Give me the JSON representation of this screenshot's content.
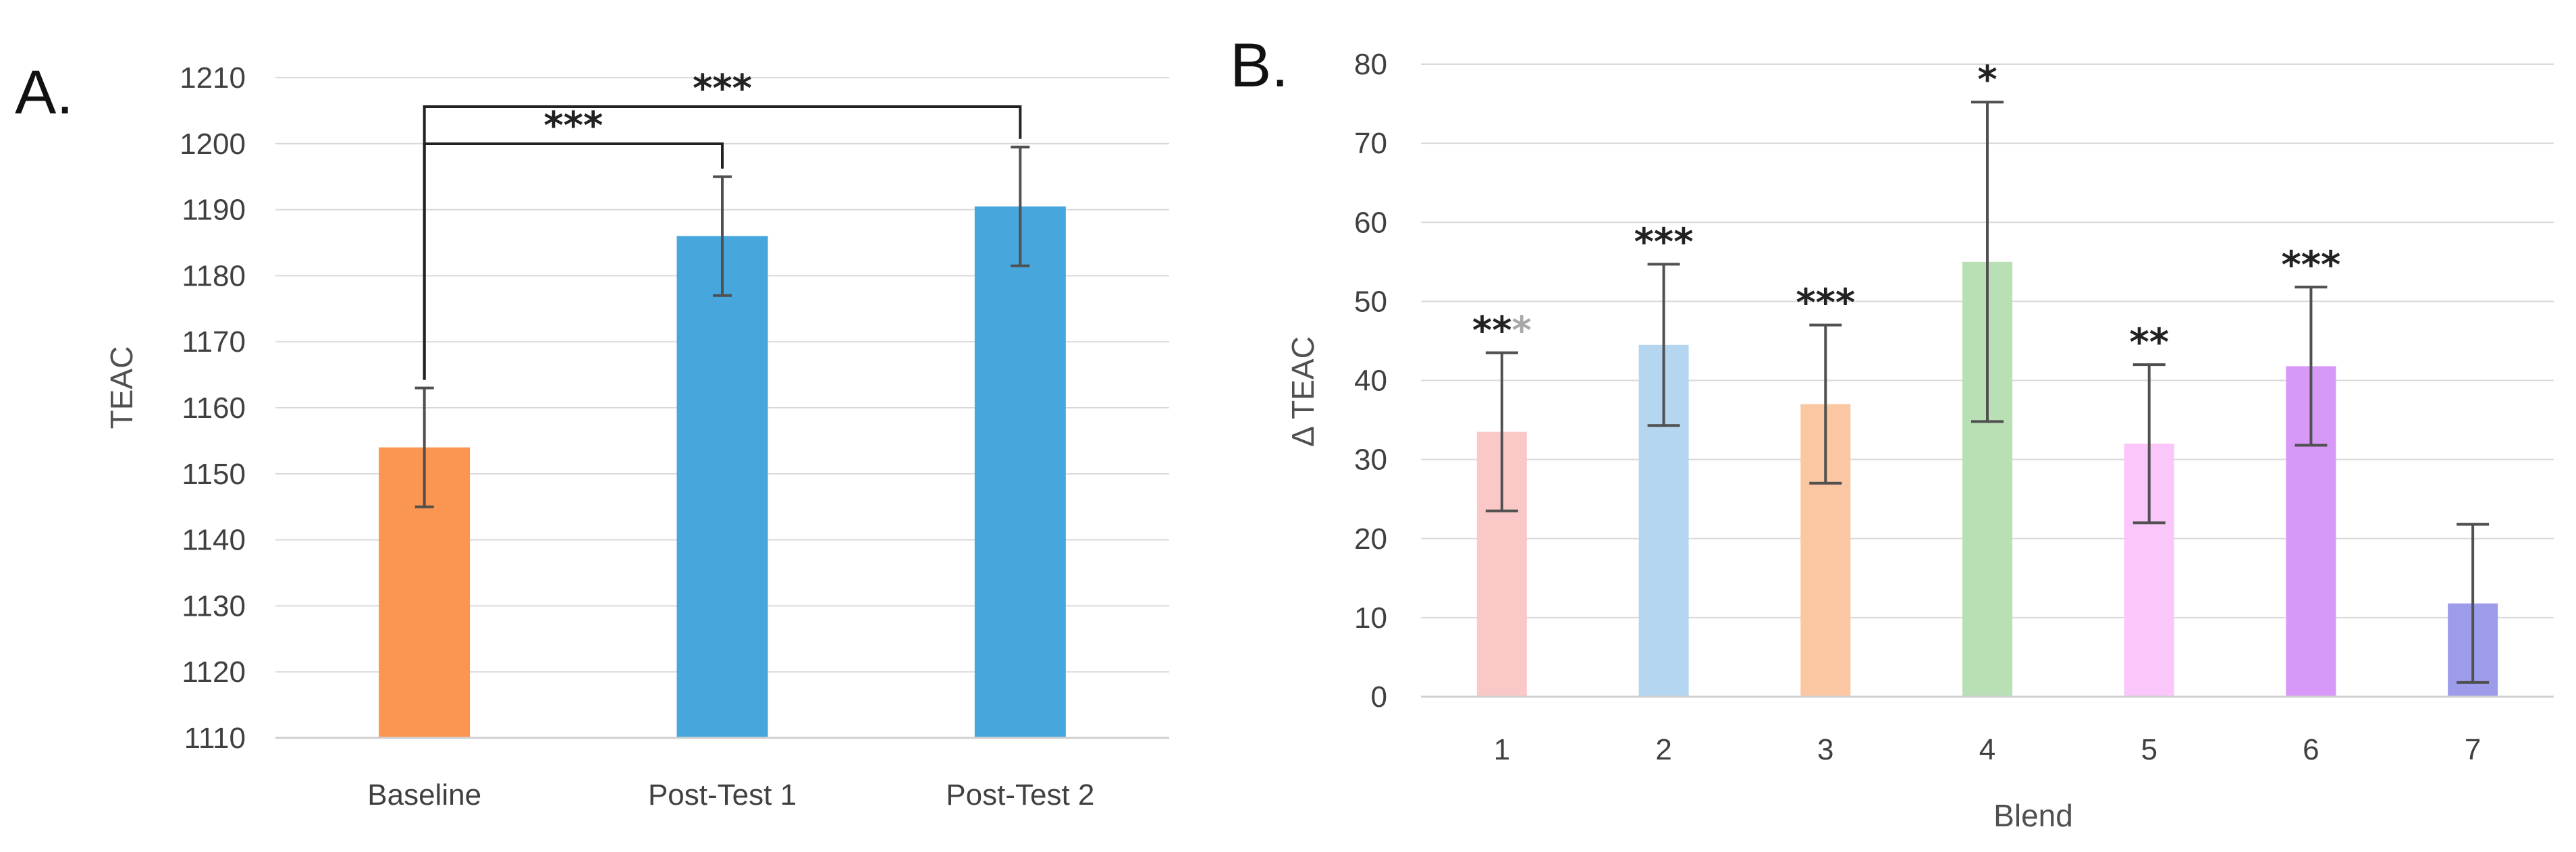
{
  "chart_data": [
    {
      "type": "bar",
      "panel_label": "A.",
      "categories": [
        "Baseline",
        "Post-Test 1",
        "Post-Test 2"
      ],
      "values": [
        1154,
        1186,
        1190.5
      ],
      "error": [
        9,
        9,
        9
      ],
      "colors": [
        "#fb9652",
        "#47a7dd",
        "#47a7dd"
      ],
      "title": "",
      "xlabel": "",
      "ylabel": "TEAC",
      "ylim": [
        1110,
        1210
      ],
      "yticks": [
        "1110",
        "1120",
        "1130",
        "1140",
        "1150",
        "1160",
        "1170",
        "1180",
        "1190",
        "1200",
        "1210"
      ],
      "grid": true,
      "brackets": [
        {
          "from": "Baseline",
          "to": "Post-Test 1",
          "label": "***"
        },
        {
          "from": "Baseline",
          "to": "Post-Test 2",
          "label": "***"
        }
      ]
    },
    {
      "type": "bar",
      "panel_label": "B.",
      "categories": [
        "1",
        "2",
        "3",
        "4",
        "5",
        "6",
        "7"
      ],
      "values": [
        33.5,
        44.5,
        37,
        55,
        32,
        41.8,
        11.8
      ],
      "error": [
        10,
        10.2,
        10,
        20.2,
        10,
        10,
        10
      ],
      "colors": [
        "#fbc8c8",
        "#b4d6f0",
        "#fbc7a3",
        "#b8e0b4",
        "#fbc6fa",
        "#d898f8",
        "#9c9ceb"
      ],
      "significance": [
        [
          {
            "text": "**",
            "color": "#222222"
          },
          {
            "text": "*",
            "color": "#a8a8a8"
          }
        ],
        [
          {
            "text": "***",
            "color": "#222222"
          }
        ],
        [
          {
            "text": "***",
            "color": "#222222"
          }
        ],
        [
          {
            "text": "*",
            "color": "#222222"
          }
        ],
        [
          {
            "text": "**",
            "color": "#222222"
          }
        ],
        [
          {
            "text": "***",
            "color": "#222222"
          }
        ],
        []
      ],
      "title": "",
      "xlabel": "Blend",
      "ylabel": "Δ TEAC",
      "ylim": [
        0,
        80
      ],
      "yticks": [
        "0",
        "10",
        "20",
        "30",
        "40",
        "50",
        "60",
        "70",
        "80"
      ],
      "grid": true
    }
  ],
  "style": {
    "grid_color": "#d9d9d9",
    "axis_color": "#d0d0d0",
    "errorbar_color": "#505050",
    "bracket_color": "#222222"
  }
}
